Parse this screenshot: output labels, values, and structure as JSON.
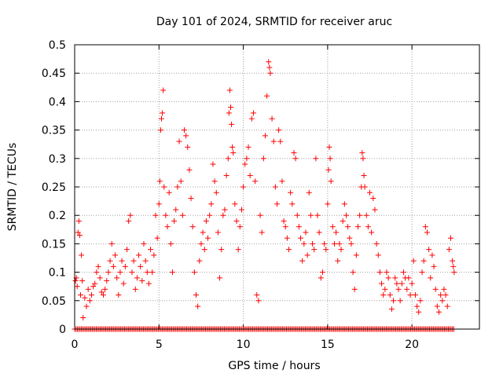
{
  "chart_data": {
    "type": "scatter",
    "title": "Day 101 of 2024, SRMTID for receiver aruc",
    "xlabel": "GPS time / hours",
    "ylabel": "SRMTID / TECUs",
    "xlim": [
      0,
      24
    ],
    "ylim": [
      0,
      0.5
    ],
    "xticks": [
      0,
      5,
      10,
      15,
      20
    ],
    "xtick_labels": [
      "0",
      "5",
      "10",
      "15",
      "20"
    ],
    "yticks": [
      0,
      0.05,
      0.1,
      0.15,
      0.2,
      0.25,
      0.3,
      0.35,
      0.4,
      0.45,
      0.5
    ],
    "ytick_labels": [
      "0",
      "0.05",
      "0.1",
      "0.15",
      "0.2",
      "0.25",
      "0.3",
      "0.35",
      "0.4",
      "0.45",
      "0.5"
    ],
    "grid": true,
    "marker": "+",
    "marker_color": "#ff0000",
    "series": [
      {
        "name": "SRMTID",
        "points": [
          [
            0.05,
            0.085
          ],
          [
            0.1,
            0.09
          ],
          [
            0.15,
            0.075
          ],
          [
            0.2,
            0.17
          ],
          [
            0.25,
            0.19
          ],
          [
            0.3,
            0.165
          ],
          [
            0.35,
            0.06
          ],
          [
            0.4,
            0.13
          ],
          [
            0.45,
            0.085
          ],
          [
            0.5,
            0.02
          ],
          [
            0.6,
            0.055
          ],
          [
            0.7,
            0.04
          ],
          [
            0.8,
            0.07
          ],
          [
            0.9,
            0.05
          ],
          [
            1.0,
            0.06
          ],
          [
            1.1,
            0.075
          ],
          [
            1.2,
            0.08
          ],
          [
            1.3,
            0.1
          ],
          [
            1.4,
            0.11
          ],
          [
            1.5,
            0.09
          ],
          [
            1.6,
            0.065
          ],
          [
            1.7,
            0.06
          ],
          [
            1.8,
            0.07
          ],
          [
            1.9,
            0.085
          ],
          [
            2.0,
            0.1
          ],
          [
            2.1,
            0.12
          ],
          [
            2.2,
            0.15
          ],
          [
            2.3,
            0.11
          ],
          [
            2.4,
            0.13
          ],
          [
            2.5,
            0.09
          ],
          [
            2.6,
            0.06
          ],
          [
            2.7,
            0.1
          ],
          [
            2.8,
            0.12
          ],
          [
            2.9,
            0.08
          ],
          [
            3.0,
            0.11
          ],
          [
            3.1,
            0.14
          ],
          [
            3.2,
            0.19
          ],
          [
            3.3,
            0.2
          ],
          [
            3.4,
            0.1
          ],
          [
            3.5,
            0.12
          ],
          [
            3.6,
            0.07
          ],
          [
            3.7,
            0.09
          ],
          [
            3.8,
            0.13
          ],
          [
            3.9,
            0.11
          ],
          [
            4.0,
            0.085
          ],
          [
            4.1,
            0.15
          ],
          [
            4.2,
            0.12
          ],
          [
            4.3,
            0.1
          ],
          [
            4.4,
            0.08
          ],
          [
            4.5,
            0.14
          ],
          [
            4.6,
            0.1
          ],
          [
            4.7,
            0.13
          ],
          [
            4.8,
            0.2
          ],
          [
            4.9,
            0.16
          ],
          [
            5.0,
            0.22
          ],
          [
            5.05,
            0.26
          ],
          [
            5.1,
            0.35
          ],
          [
            5.15,
            0.37
          ],
          [
            5.2,
            0.38
          ],
          [
            5.25,
            0.42
          ],
          [
            5.3,
            0.25
          ],
          [
            5.4,
            0.2
          ],
          [
            5.5,
            0.18
          ],
          [
            5.6,
            0.24
          ],
          [
            5.7,
            0.15
          ],
          [
            5.8,
            0.1
          ],
          [
            5.9,
            0.19
          ],
          [
            6.0,
            0.21
          ],
          [
            6.1,
            0.25
          ],
          [
            6.2,
            0.33
          ],
          [
            6.3,
            0.26
          ],
          [
            6.4,
            0.2
          ],
          [
            6.5,
            0.35
          ],
          [
            6.6,
            0.34
          ],
          [
            6.7,
            0.32
          ],
          [
            6.8,
            0.28
          ],
          [
            6.9,
            0.23
          ],
          [
            7.0,
            0.18
          ],
          [
            7.1,
            0.1
          ],
          [
            7.2,
            0.06
          ],
          [
            7.3,
            0.04
          ],
          [
            7.4,
            0.12
          ],
          [
            7.5,
            0.15
          ],
          [
            7.6,
            0.17
          ],
          [
            7.7,
            0.14
          ],
          [
            7.8,
            0.19
          ],
          [
            7.9,
            0.16
          ],
          [
            8.0,
            0.2
          ],
          [
            8.1,
            0.22
          ],
          [
            8.2,
            0.29
          ],
          [
            8.3,
            0.26
          ],
          [
            8.4,
            0.24
          ],
          [
            8.5,
            0.17
          ],
          [
            8.6,
            0.09
          ],
          [
            8.7,
            0.14
          ],
          [
            8.8,
            0.2
          ],
          [
            8.9,
            0.21
          ],
          [
            9.0,
            0.27
          ],
          [
            9.1,
            0.3
          ],
          [
            9.15,
            0.38
          ],
          [
            9.2,
            0.42
          ],
          [
            9.25,
            0.39
          ],
          [
            9.3,
            0.36
          ],
          [
            9.35,
            0.32
          ],
          [
            9.4,
            0.31
          ],
          [
            9.5,
            0.22
          ],
          [
            9.6,
            0.19
          ],
          [
            9.7,
            0.14
          ],
          [
            9.8,
            0.18
          ],
          [
            9.9,
            0.21
          ],
          [
            10.0,
            0.25
          ],
          [
            10.1,
            0.29
          ],
          [
            10.2,
            0.3
          ],
          [
            10.3,
            0.32
          ],
          [
            10.4,
            0.27
          ],
          [
            10.5,
            0.37
          ],
          [
            10.6,
            0.38
          ],
          [
            10.7,
            0.26
          ],
          [
            10.8,
            0.06
          ],
          [
            10.9,
            0.05
          ],
          [
            11.0,
            0.2
          ],
          [
            11.1,
            0.17
          ],
          [
            11.2,
            0.3
          ],
          [
            11.3,
            0.34
          ],
          [
            11.4,
            0.41
          ],
          [
            11.5,
            0.47
          ],
          [
            11.55,
            0.46
          ],
          [
            11.6,
            0.45
          ],
          [
            11.7,
            0.37
          ],
          [
            11.8,
            0.33
          ],
          [
            11.9,
            0.25
          ],
          [
            12.0,
            0.22
          ],
          [
            12.1,
            0.35
          ],
          [
            12.2,
            0.33
          ],
          [
            12.3,
            0.26
          ],
          [
            12.4,
            0.19
          ],
          [
            12.5,
            0.18
          ],
          [
            12.6,
            0.16
          ],
          [
            12.7,
            0.14
          ],
          [
            12.8,
            0.24
          ],
          [
            12.9,
            0.22
          ],
          [
            13.0,
            0.31
          ],
          [
            13.1,
            0.3
          ],
          [
            13.2,
            0.2
          ],
          [
            13.3,
            0.18
          ],
          [
            13.4,
            0.16
          ],
          [
            13.5,
            0.12
          ],
          [
            13.6,
            0.15
          ],
          [
            13.7,
            0.17
          ],
          [
            13.8,
            0.13
          ],
          [
            13.9,
            0.24
          ],
          [
            14.0,
            0.2
          ],
          [
            14.1,
            0.15
          ],
          [
            14.2,
            0.14
          ],
          [
            14.3,
            0.3
          ],
          [
            14.4,
            0.2
          ],
          [
            14.5,
            0.17
          ],
          [
            14.6,
            0.09
          ],
          [
            14.7,
            0.1
          ],
          [
            14.8,
            0.15
          ],
          [
            14.9,
            0.14
          ],
          [
            15.0,
            0.22
          ],
          [
            15.05,
            0.28
          ],
          [
            15.1,
            0.32
          ],
          [
            15.15,
            0.3
          ],
          [
            15.2,
            0.26
          ],
          [
            15.3,
            0.18
          ],
          [
            15.4,
            0.15
          ],
          [
            15.5,
            0.17
          ],
          [
            15.6,
            0.12
          ],
          [
            15.7,
            0.15
          ],
          [
            15.8,
            0.14
          ],
          [
            15.9,
            0.19
          ],
          [
            16.0,
            0.22
          ],
          [
            16.1,
            0.2
          ],
          [
            16.2,
            0.18
          ],
          [
            16.3,
            0.16
          ],
          [
            16.4,
            0.15
          ],
          [
            16.5,
            0.1
          ],
          [
            16.6,
            0.07
          ],
          [
            16.7,
            0.13
          ],
          [
            16.8,
            0.18
          ],
          [
            16.9,
            0.2
          ],
          [
            17.0,
            0.25
          ],
          [
            17.05,
            0.31
          ],
          [
            17.1,
            0.3
          ],
          [
            17.15,
            0.27
          ],
          [
            17.2,
            0.25
          ],
          [
            17.3,
            0.2
          ],
          [
            17.4,
            0.18
          ],
          [
            17.5,
            0.24
          ],
          [
            17.6,
            0.17
          ],
          [
            17.7,
            0.23
          ],
          [
            17.8,
            0.21
          ],
          [
            17.9,
            0.15
          ],
          [
            18.0,
            0.13
          ],
          [
            18.1,
            0.1
          ],
          [
            18.2,
            0.08
          ],
          [
            18.3,
            0.06
          ],
          [
            18.4,
            0.07
          ],
          [
            18.5,
            0.1
          ],
          [
            18.6,
            0.09
          ],
          [
            18.7,
            0.06
          ],
          [
            18.8,
            0.035
          ],
          [
            18.9,
            0.05
          ],
          [
            19.0,
            0.09
          ],
          [
            19.1,
            0.08
          ],
          [
            19.2,
            0.07
          ],
          [
            19.3,
            0.05
          ],
          [
            19.4,
            0.08
          ],
          [
            19.5,
            0.1
          ],
          [
            19.6,
            0.09
          ],
          [
            19.7,
            0.07
          ],
          [
            19.8,
            0.09
          ],
          [
            19.9,
            0.06
          ],
          [
            20.0,
            0.08
          ],
          [
            20.1,
            0.12
          ],
          [
            20.2,
            0.06
          ],
          [
            20.3,
            0.04
          ],
          [
            20.4,
            0.03
          ],
          [
            20.5,
            0.05
          ],
          [
            20.6,
            0.1
          ],
          [
            20.7,
            0.12
          ],
          [
            20.8,
            0.18
          ],
          [
            20.9,
            0.17
          ],
          [
            21.0,
            0.14
          ],
          [
            21.1,
            0.09
          ],
          [
            21.2,
            0.13
          ],
          [
            21.3,
            0.11
          ],
          [
            21.4,
            0.07
          ],
          [
            21.5,
            0.04
          ],
          [
            21.6,
            0.03
          ],
          [
            21.7,
            0.06
          ],
          [
            21.8,
            0.05
          ],
          [
            21.9,
            0.07
          ],
          [
            22.0,
            0.06
          ],
          [
            22.1,
            0.04
          ],
          [
            22.2,
            0.14
          ],
          [
            22.3,
            0.16
          ],
          [
            22.4,
            0.12
          ],
          [
            22.45,
            0.11
          ],
          [
            22.5,
            0.1
          ]
        ],
        "floor_points_y": 0,
        "floor_points_x_range": [
          0.0,
          22.5
        ]
      }
    ]
  }
}
